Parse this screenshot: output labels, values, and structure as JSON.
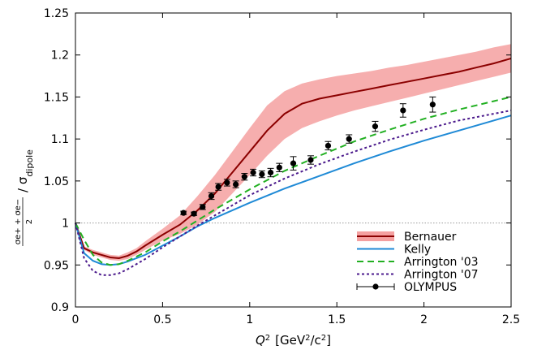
{
  "chart_data": {
    "type": "line",
    "xlabel": {
      "var": "Q",
      "sup": "2",
      "units": "[GeV",
      "units_sup": "2",
      "units_tail": "/c",
      "units_tail_sup": "2",
      "close": "]"
    },
    "ylabel": {
      "num": "σe+ + σe−",
      "den": "2",
      "rest": "/ σ",
      "sub": "dipole"
    },
    "xlim": [
      0,
      2.5
    ],
    "ylim": [
      0.9,
      1.25
    ],
    "x_ticks": [
      "0",
      "0.5",
      "1",
      "1.5",
      "2",
      "2.5"
    ],
    "x_tick_values": [
      0,
      0.5,
      1,
      1.5,
      2,
      2.5
    ],
    "y_ticks": [
      "0.9",
      "0.95",
      "1",
      "1.05",
      "1.1",
      "1.15",
      "1.2",
      "1.25"
    ],
    "y_tick_values": [
      0.9,
      0.95,
      1.0,
      1.05,
      1.1,
      1.15,
      1.2,
      1.25
    ],
    "reference_line": 1.0,
    "legend_position": "bottom-right",
    "series": [
      {
        "name": "Bernauer",
        "style": "band",
        "color": "#8b0000",
        "band_color": "#f4a0a0",
        "x": [
          0,
          0.05,
          0.1,
          0.15,
          0.2,
          0.25,
          0.3,
          0.35,
          0.4,
          0.5,
          0.6,
          0.7,
          0.8,
          0.9,
          1.0,
          1.1,
          1.2,
          1.3,
          1.4,
          1.5,
          1.6,
          1.7,
          1.8,
          1.9,
          2.0,
          2.1,
          2.2,
          2.3,
          2.4,
          2.5
        ],
        "y": [
          1.0,
          0.97,
          0.965,
          0.962,
          0.959,
          0.958,
          0.961,
          0.966,
          0.973,
          0.986,
          0.998,
          1.015,
          1.035,
          1.06,
          1.085,
          1.11,
          1.13,
          1.142,
          1.148,
          1.152,
          1.156,
          1.16,
          1.164,
          1.168,
          1.172,
          1.176,
          1.18,
          1.185,
          1.19,
          1.196
        ],
        "lo": [
          1.0,
          0.968,
          0.962,
          0.959,
          0.956,
          0.955,
          0.957,
          0.962,
          0.968,
          0.979,
          0.987,
          0.998,
          1.013,
          1.035,
          1.057,
          1.08,
          1.1,
          1.113,
          1.121,
          1.128,
          1.134,
          1.139,
          1.144,
          1.149,
          1.154,
          1.159,
          1.164,
          1.169,
          1.174,
          1.179
        ],
        "hi": [
          1.0,
          0.972,
          0.968,
          0.965,
          0.962,
          0.961,
          0.965,
          0.97,
          0.978,
          0.993,
          1.009,
          1.032,
          1.057,
          1.085,
          1.113,
          1.14,
          1.157,
          1.166,
          1.171,
          1.175,
          1.178,
          1.181,
          1.185,
          1.188,
          1.192,
          1.196,
          1.2,
          1.204,
          1.209,
          1.213
        ]
      },
      {
        "name": "Kelly",
        "style": "solid",
        "color": "#1f8ad6",
        "x": [
          0,
          0.05,
          0.1,
          0.15,
          0.2,
          0.25,
          0.3,
          0.4,
          0.5,
          0.6,
          0.7,
          0.8,
          0.9,
          1.0,
          1.2,
          1.4,
          1.6,
          1.8,
          2.0,
          2.2,
          2.4,
          2.5
        ],
        "y": [
          1.0,
          0.964,
          0.955,
          0.951,
          0.95,
          0.951,
          0.954,
          0.962,
          0.973,
          0.984,
          0.996,
          1.006,
          1.015,
          1.024,
          1.041,
          1.056,
          1.071,
          1.085,
          1.098,
          1.11,
          1.122,
          1.128
        ]
      },
      {
        "name": "Arrington '03",
        "style": "dashed",
        "color": "#22b022",
        "x": [
          0,
          0.05,
          0.1,
          0.15,
          0.2,
          0.25,
          0.3,
          0.4,
          0.5,
          0.6,
          0.7,
          0.8,
          0.9,
          1.0,
          1.2,
          1.4,
          1.6,
          1.8,
          2.0,
          2.2,
          2.4,
          2.5
        ],
        "y": [
          1.0,
          0.98,
          0.962,
          0.953,
          0.95,
          0.951,
          0.955,
          0.965,
          0.978,
          0.99,
          1.003,
          1.016,
          1.028,
          1.04,
          1.062,
          1.08,
          1.097,
          1.111,
          1.124,
          1.135,
          1.145,
          1.15
        ]
      },
      {
        "name": "Arrington '07",
        "style": "dotted",
        "color": "#4b1a8c",
        "x": [
          0,
          0.05,
          0.1,
          0.15,
          0.2,
          0.25,
          0.3,
          0.4,
          0.5,
          0.6,
          0.7,
          0.8,
          0.9,
          1.0,
          1.2,
          1.4,
          1.6,
          1.8,
          2.0,
          2.2,
          2.4,
          2.5
        ],
        "y": [
          1.0,
          0.958,
          0.943,
          0.938,
          0.938,
          0.94,
          0.945,
          0.957,
          0.971,
          0.984,
          0.997,
          1.009,
          1.021,
          1.033,
          1.053,
          1.07,
          1.085,
          1.099,
          1.111,
          1.122,
          1.13,
          1.134
        ]
      },
      {
        "name": "OLYMPUS",
        "style": "points",
        "color": "#000000",
        "x": [
          0.62,
          0.68,
          0.73,
          0.78,
          0.82,
          0.87,
          0.92,
          0.97,
          1.02,
          1.07,
          1.12,
          1.17,
          1.25,
          1.35,
          1.45,
          1.57,
          1.72,
          1.88,
          2.05
        ],
        "y": [
          1.012,
          1.011,
          1.019,
          1.032,
          1.043,
          1.048,
          1.046,
          1.055,
          1.06,
          1.058,
          1.06,
          1.066,
          1.071,
          1.075,
          1.092,
          1.1,
          1.115,
          1.134,
          1.141
        ],
        "err": [
          0.002,
          0.002,
          0.003,
          0.004,
          0.004,
          0.004,
          0.004,
          0.004,
          0.004,
          0.004,
          0.005,
          0.005,
          0.008,
          0.005,
          0.005,
          0.005,
          0.006,
          0.008,
          0.009
        ]
      }
    ]
  }
}
